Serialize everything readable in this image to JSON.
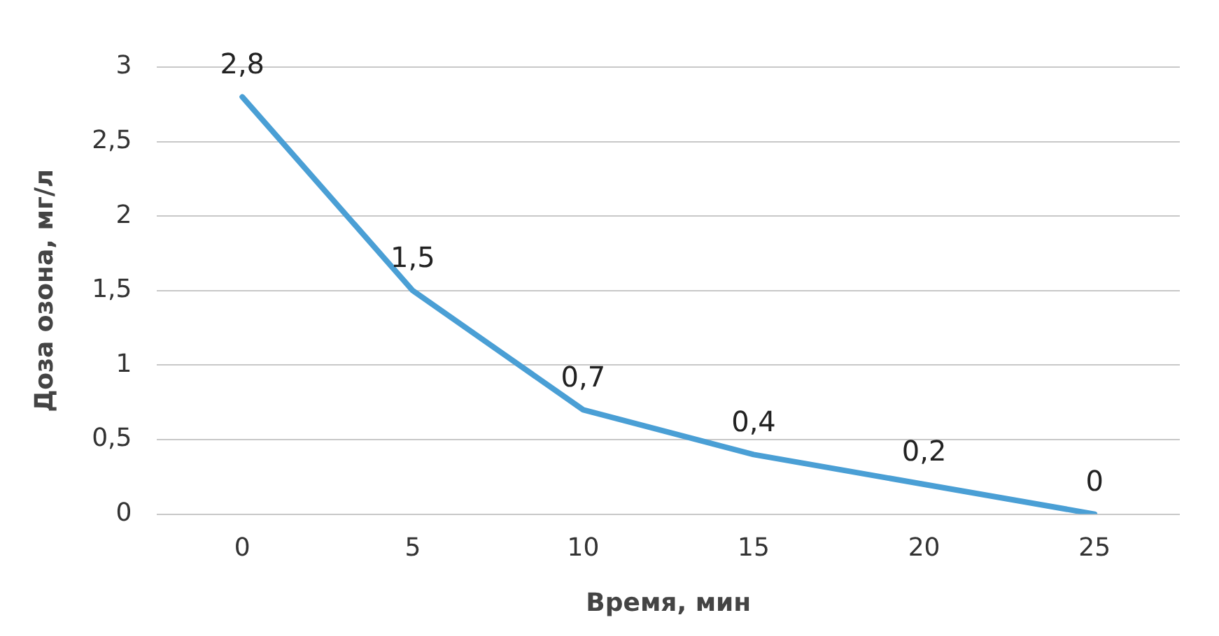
{
  "chart_data": {
    "type": "line",
    "xlabel": "Время, мин",
    "ylabel": "Доза озона, мг/л",
    "categories": [
      "0",
      "5",
      "10",
      "15",
      "20",
      "25"
    ],
    "series": [
      {
        "color": "#4a9fd5",
        "values": [
          2.8,
          1.5,
          0.7,
          0.4,
          0.2,
          0
        ],
        "value_labels": [
          "2,8",
          "1,5",
          "0,7",
          "0,4",
          "0,2",
          "0"
        ]
      }
    ],
    "ylim": [
      0,
      3
    ],
    "yticks": [
      0,
      {
        "value": 0.5,
        "label": "0,5"
      },
      1,
      {
        "value": 1.5,
        "label": "1,5"
      },
      2,
      {
        "value": 2.5,
        "label": "2,5"
      },
      3
    ],
    "grid": "y",
    "legend": false,
    "marker": "none",
    "line_style": "solid"
  }
}
